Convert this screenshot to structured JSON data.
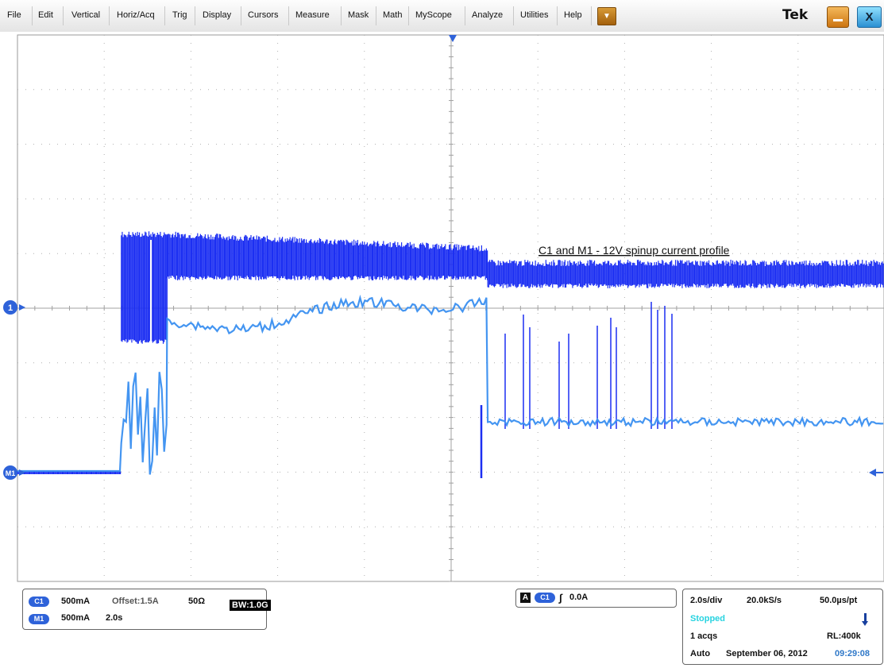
{
  "menu": {
    "items": [
      "File",
      "Edit",
      "Vertical",
      "Horiz/Acq",
      "Trig",
      "Display",
      "Cursors",
      "Measure",
      "Mask",
      "Math",
      "MyScope",
      "Analyze",
      "Utilities",
      "Help"
    ],
    "dropdown_glyph": "▼",
    "logo": "Tek",
    "close_glyph": "X"
  },
  "scope": {
    "annotation": "C1 and M1 - 12V spinup current profile",
    "ch1_marker": "1",
    "m1_marker": "M1",
    "trace_colors": {
      "ch1": "#1c2ff2",
      "m1": "#3a8ff0"
    }
  },
  "chart_data": {
    "type": "line",
    "title": "C1 and M1 - 12V spinup current profile",
    "xlabel": "",
    "ylabel": "",
    "x_divisions": 10,
    "y_divisions": 10,
    "grid": true,
    "series": [
      {
        "name": "C1",
        "color": "#1c2ff2",
        "segments": [
          {
            "from": 0.0,
            "to": 1.7,
            "lo": 0.0,
            "hi": 0.0
          },
          {
            "from": 1.7,
            "to": 2.45,
            "lo": -1.0,
            "hi": 2.2
          },
          {
            "from": 2.45,
            "to": 7.7,
            "lo": 1.0,
            "hi": 2.2
          },
          {
            "from": 7.7,
            "to": 14.2,
            "lo": 0.75,
            "hi": 1.3
          }
        ]
      },
      {
        "name": "M1",
        "color": "#3a8ff0",
        "segments": [
          {
            "from": 0.0,
            "to": 1.7,
            "value": 0.0
          },
          {
            "from": 1.7,
            "to": 2.45,
            "value": 1.1
          },
          {
            "from": 2.45,
            "to": 7.7,
            "value": 1.6
          },
          {
            "from": 7.7,
            "to": 14.2,
            "value": 1.0
          }
        ]
      }
    ]
  },
  "channels": {
    "c1": {
      "badge": "C1",
      "scale": "500mA",
      "offset": "Offset:1.5A",
      "termination": "50Ω",
      "bw_label": "BW:1.0G"
    },
    "m1": {
      "badge": "M1",
      "scale": "500mA",
      "time": "2.0s"
    }
  },
  "trigger": {
    "source_letter": "A",
    "source": "C1",
    "slope_glyph": "∫",
    "level": "0.0A"
  },
  "acquisition": {
    "time_per_div": "2.0s/div",
    "sample_rate": "20.0kS/s",
    "resolution": "50.0µs/pt",
    "status": "Stopped",
    "acqs": "1 acqs",
    "record_length": "RL:400k",
    "mode": "Auto",
    "date": "September 06, 2012",
    "time": "09:29:08",
    "status_color": "#27d3e0",
    "time_color": "#2f78c8"
  }
}
